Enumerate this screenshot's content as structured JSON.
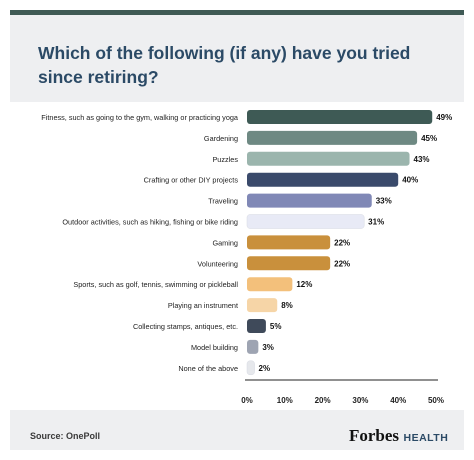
{
  "header": {
    "title": "Which of the following (if any) have you tried since retiring?"
  },
  "footer": {
    "source": "Source:  OnePoll",
    "brand": "Forbes",
    "brand_sub": "HEALTH"
  },
  "colors": {
    "card_bg": "#eeeff1",
    "top_rule": "#3f5a55",
    "title": "#2b4a66"
  },
  "chart_data": {
    "type": "bar",
    "orientation": "horizontal",
    "title": "Which of the following (if any) have you tried since retiring?",
    "xlabel": "",
    "ylabel": "",
    "xlim": [
      0,
      50
    ],
    "x_ticks": [
      "0%",
      "10%",
      "20%",
      "30%",
      "40%",
      "50%"
    ],
    "grid": false,
    "categories": [
      "Fitness, such as going to the gym, walking or practicing yoga",
      "Gardening",
      "Puzzles",
      "Crafting or other DIY projects",
      "Traveling",
      "Outdoor activities, such as hiking, fishing or bike riding",
      "Gaming",
      "Volunteering",
      "Sports, such as golf, tennis, swimming or pickleball",
      "Playing an instrument",
      "Collecting stamps, antiques, etc.",
      "Model building",
      "None of the above"
    ],
    "values": [
      49,
      45,
      43,
      40,
      33,
      31,
      22,
      22,
      12,
      8,
      5,
      3,
      2
    ],
    "value_labels": [
      "49%",
      "45%",
      "43%",
      "40%",
      "33%",
      "31%",
      "22%",
      "22%",
      "12%",
      "8%",
      "5%",
      "3%",
      "2%"
    ],
    "bar_colors": [
      "#3e5a55",
      "#6e8983",
      "#9bb5ad",
      "#3a4a6b",
      "#8088b6",
      "#e8eaf6",
      "#c9903c",
      "#c9903c",
      "#f3c07b",
      "#f6d5a7",
      "#3f4a5a",
      "#9ea4b2",
      "#e6e8ec"
    ]
  }
}
